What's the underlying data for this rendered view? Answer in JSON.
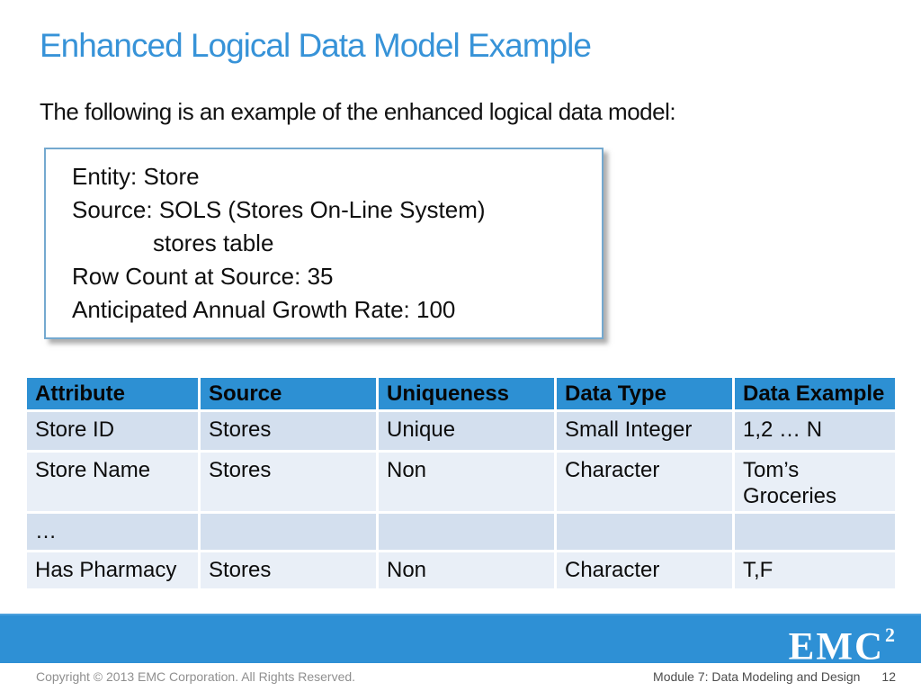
{
  "slide": {
    "title": "Enhanced Logical Data Model Example",
    "intro": "The following is an example of the enhanced logical data model:",
    "entity_box": {
      "lines": [
        "Entity: Store",
        "Source: SOLS (Stores On-Line System)",
        "stores table",
        "Row Count at Source: 35",
        "Anticipated Annual Growth Rate: 100"
      ]
    },
    "table": {
      "headers": [
        "Attribute",
        "Source",
        "Uniqueness",
        "Data Type",
        "Data Example"
      ],
      "rows": [
        [
          "Store ID",
          "Stores",
          "Unique",
          "Small Integer",
          "1,2 … N"
        ],
        [
          "Store Name",
          "Stores",
          "Non",
          "Character",
          "Tom’s Groceries"
        ],
        [
          "…",
          "",
          "",
          "",
          ""
        ],
        [
          "Has Pharmacy",
          "Stores",
          "Non",
          "Character",
          "T,F"
        ]
      ]
    },
    "footer": {
      "logo_text": "EMC",
      "logo_sup": "2",
      "copyright": "Copyright © 2013 EMC Corporation. All Rights Reserved.",
      "module": "Module 7: Data Modeling and Design",
      "page": "12"
    },
    "colors": {
      "accent_blue": "#2e90d5",
      "title_blue": "#3793d8",
      "table_header_blue": "#2d90d3",
      "row_band_dark": "#d3dfee",
      "row_band_light": "#e9eff7",
      "box_border_blue": "#74a9cf"
    }
  }
}
